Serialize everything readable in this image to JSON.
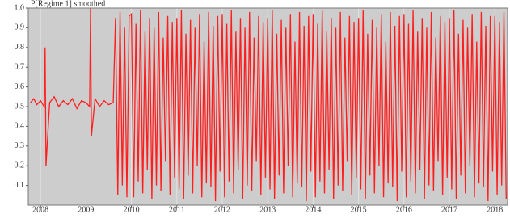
{
  "chart_data": {
    "type": "line",
    "title": "P[Regime 1] smoothed",
    "color": "#ff1e1e",
    "xlim": [
      2007.73,
      2018.28
    ],
    "xticks": [
      2008,
      2009,
      2010,
      2011,
      2012,
      2013,
      2014,
      2015,
      2016,
      2017,
      2018
    ],
    "ylim": [
      0,
      1
    ],
    "yticks": [
      0.1,
      0.2,
      0.3,
      0.4,
      0.5,
      0.6,
      0.7,
      0.8,
      0.9,
      {
        "value": 1,
        "label": "1.0"
      }
    ],
    "x": [
      2007.78,
      2007.85,
      2007.92,
      2008.0,
      2008.08,
      2008.1,
      2008.12,
      2008.2,
      2008.3,
      2008.4,
      2008.5,
      2008.6,
      2008.7,
      2008.8,
      2008.9,
      2009.0,
      2009.08,
      2009.1,
      2009.12,
      2009.2,
      2009.3,
      2009.4,
      2009.5,
      2009.6,
      2009.65,
      2009.7,
      2009.75,
      2009.8,
      2009.85,
      2009.9,
      2009.95,
      2010.0,
      2010.05,
      2010.1,
      2010.15,
      2010.2,
      2010.25,
      2010.3,
      2010.35,
      2010.4,
      2010.45,
      2010.5,
      2010.55,
      2010.6,
      2010.65,
      2010.7,
      2010.75,
      2010.8,
      2010.85,
      2010.9,
      2010.95,
      2011.0,
      2011.05,
      2011.1,
      2011.15,
      2011.2,
      2011.25,
      2011.3,
      2011.35,
      2011.4,
      2011.45,
      2011.5,
      2011.55,
      2011.6,
      2011.65,
      2011.7,
      2011.75,
      2011.8,
      2011.85,
      2011.9,
      2011.95,
      2012.0,
      2012.05,
      2012.1,
      2012.15,
      2012.2,
      2012.25,
      2012.3,
      2012.35,
      2012.4,
      2012.45,
      2012.5,
      2012.55,
      2012.6,
      2012.65,
      2012.7,
      2012.75,
      2012.8,
      2012.85,
      2012.9,
      2012.95,
      2013.0,
      2013.05,
      2013.1,
      2013.15,
      2013.2,
      2013.25,
      2013.3,
      2013.35,
      2013.4,
      2013.45,
      2013.5,
      2013.55,
      2013.6,
      2013.65,
      2013.7,
      2013.75,
      2013.8,
      2013.85,
      2013.9,
      2013.95,
      2014.0,
      2014.05,
      2014.1,
      2014.15,
      2014.2,
      2014.25,
      2014.3,
      2014.35,
      2014.4,
      2014.45,
      2014.5,
      2014.55,
      2014.6,
      2014.65,
      2014.7,
      2014.75,
      2014.8,
      2014.85,
      2014.9,
      2014.95,
      2015.0,
      2015.05,
      2015.1,
      2015.15,
      2015.2,
      2015.25,
      2015.3,
      2015.35,
      2015.4,
      2015.45,
      2015.5,
      2015.55,
      2015.6,
      2015.65,
      2015.7,
      2015.75,
      2015.8,
      2015.85,
      2015.9,
      2015.95,
      2016.0,
      2016.05,
      2016.1,
      2016.15,
      2016.2,
      2016.25,
      2016.3,
      2016.35,
      2016.4,
      2016.45,
      2016.5,
      2016.55,
      2016.6,
      2016.65,
      2016.7,
      2016.75,
      2016.8,
      2016.85,
      2016.9,
      2016.95,
      2017.0,
      2017.05,
      2017.1,
      2017.15,
      2017.2,
      2017.25,
      2017.3,
      2017.35,
      2017.4,
      2017.45,
      2017.5,
      2017.55,
      2017.6,
      2017.65,
      2017.7,
      2017.75,
      2017.8,
      2017.85,
      2017.9,
      2017.95,
      2018.0,
      2018.05,
      2018.1,
      2018.15,
      2018.2,
      2018.25
    ],
    "values": [
      0.52,
      0.54,
      0.51,
      0.53,
      0.5,
      0.8,
      0.2,
      0.52,
      0.55,
      0.5,
      0.53,
      0.51,
      0.54,
      0.49,
      0.53,
      0.52,
      0.5,
      1.0,
      0.35,
      0.54,
      0.5,
      0.53,
      0.51,
      0.52,
      0.95,
      0.05,
      0.98,
      0.1,
      0.9,
      0.04,
      0.96,
      0.97,
      0.04,
      0.92,
      0.12,
      0.99,
      0.06,
      0.88,
      0.18,
      0.95,
      0.03,
      0.9,
      0.1,
      0.98,
      0.07,
      0.85,
      0.22,
      0.96,
      0.05,
      0.93,
      0.14,
      0.95,
      0.08,
      0.99,
      0.03,
      0.87,
      0.15,
      0.94,
      0.06,
      0.9,
      0.2,
      0.97,
      0.04,
      0.83,
      0.11,
      0.98,
      0.09,
      0.91,
      0.02,
      0.96,
      0.17,
      0.97,
      0.04,
      0.92,
      0.12,
      0.99,
      0.06,
      0.88,
      0.18,
      0.95,
      0.03,
      0.9,
      0.1,
      0.98,
      0.07,
      0.85,
      0.22,
      0.96,
      0.05,
      0.93,
      0.14,
      0.95,
      0.08,
      0.99,
      0.03,
      0.87,
      0.15,
      0.94,
      0.06,
      0.9,
      0.2,
      0.97,
      0.04,
      0.83,
      0.11,
      0.98,
      0.09,
      0.91,
      0.02,
      0.96,
      0.17,
      0.97,
      0.04,
      0.92,
      0.12,
      0.99,
      0.06,
      0.88,
      0.18,
      0.95,
      0.03,
      0.9,
      0.1,
      0.98,
      0.07,
      0.85,
      0.22,
      0.96,
      0.05,
      0.93,
      0.14,
      0.95,
      0.08,
      0.99,
      0.03,
      0.87,
      0.15,
      0.94,
      0.06,
      0.9,
      0.2,
      0.97,
      0.04,
      0.83,
      0.11,
      0.98,
      0.09,
      0.91,
      0.02,
      0.96,
      0.17,
      0.97,
      0.04,
      0.92,
      0.12,
      0.99,
      0.06,
      0.88,
      0.18,
      0.95,
      0.03,
      0.9,
      0.1,
      0.98,
      0.07,
      0.85,
      0.22,
      0.96,
      0.05,
      0.93,
      0.14,
      0.95,
      0.08,
      0.99,
      0.03,
      0.87,
      0.15,
      0.94,
      0.06,
      0.9,
      0.2,
      0.97,
      0.04,
      0.83,
      0.11,
      0.98,
      0.09,
      0.91,
      0.02,
      0.96,
      0.17,
      0.96,
      0.05,
      0.93,
      0.1,
      0.98,
      0.03
    ]
  }
}
